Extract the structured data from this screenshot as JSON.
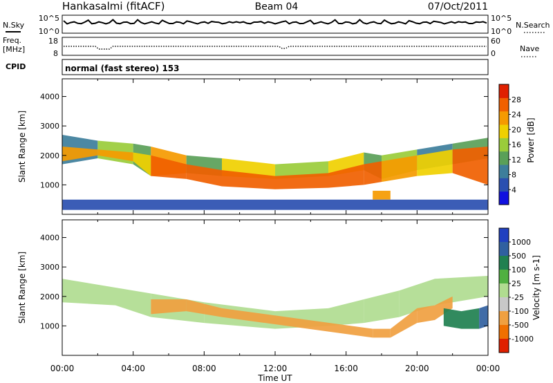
{
  "header": {
    "site": "Hankasalmi (fitACF)",
    "beam": "Beam 04",
    "date": "07/Oct/2011"
  },
  "top_strip": {
    "n_sky_label": "N.Sky",
    "n_search_label": "N.Search",
    "count_ticks": [
      "10^5",
      "10^0"
    ],
    "freq_label_1": "Freq.",
    "freq_label_2": "[MHz]",
    "freq_ticks": [
      "18",
      "8"
    ],
    "nave_label": "Nave",
    "nave_ticks": [
      "60",
      "0"
    ],
    "cpid_label": "CPID",
    "cpid_value": "normal (fast stereo) 153"
  },
  "chart_data": [
    {
      "type": "heatmap",
      "name": "power",
      "xlabel": "",
      "ylabel": "Slant Range [km]",
      "ylim": [
        0,
        4600
      ],
      "xlim_hours": [
        0,
        24
      ],
      "y_ticks": [
        "1000",
        "2000",
        "3000",
        "4000"
      ],
      "colorbar": {
        "label": "Power [dB]",
        "range": [
          0,
          32
        ],
        "ticks": [
          "4",
          "8",
          "12",
          "16",
          "20",
          "24",
          "28"
        ],
        "colors": [
          "#1010e0",
          "#2a4fb0",
          "#3d7e9b",
          "#5aa058",
          "#9acc3a",
          "#f0d000",
          "#f59a00",
          "#f06000",
          "#e02000"
        ]
      },
      "layers": [
        {
          "name": "upper",
          "t": [
            0,
            2,
            4,
            5,
            7,
            9,
            12,
            15,
            17,
            18,
            20,
            22,
            24
          ],
          "lower": [
            1700,
            1900,
            1700,
            1300,
            1400,
            1300,
            1200,
            1300,
            1500,
            1200,
            1500,
            1700,
            1900
          ],
          "upper": [
            2700,
            2500,
            2400,
            2300,
            2000,
            1900,
            1700,
            1800,
            2100,
            2000,
            2200,
            2400,
            2600
          ],
          "dB": [
            10,
            16,
            12,
            22,
            14,
            18,
            16,
            18,
            12,
            16,
            10,
            14,
            12
          ]
        },
        {
          "name": "core",
          "t": [
            0,
            2,
            4,
            5,
            7,
            9,
            12,
            15,
            17,
            18,
            20,
            22,
            24
          ],
          "lower": [
            1800,
            2000,
            1800,
            1300,
            1200,
            950,
            850,
            900,
            1000,
            1100,
            1300,
            1400,
            1000
          ],
          "upper": [
            2300,
            2200,
            2100,
            2000,
            1700,
            1500,
            1300,
            1400,
            1700,
            1800,
            2000,
            2200,
            2300
          ],
          "dB": [
            24,
            22,
            20,
            28,
            28,
            28,
            28,
            28,
            26,
            22,
            20,
            26,
            28
          ]
        },
        {
          "name": "secondary",
          "t": [
            17.5,
            18,
            18.5
          ],
          "lower": [
            500,
            500,
            500
          ],
          "upper": [
            800,
            800,
            800
          ],
          "dB": [
            24,
            24,
            24
          ]
        },
        {
          "name": "ground-scatter",
          "t": [
            0,
            24
          ],
          "lower": [
            150,
            150
          ],
          "upper": [
            500,
            500
          ],
          "dB": [
            6,
            6
          ]
        }
      ]
    },
    {
      "type": "heatmap",
      "name": "velocity",
      "xlabel": "Time UT",
      "ylabel": "Slant Range [km]",
      "ylim": [
        0,
        4600
      ],
      "xlim_hours": [
        0,
        24
      ],
      "x_ticks": [
        "00:00",
        "04:00",
        "08:00",
        "12:00",
        "16:00",
        "20:00",
        "00:00"
      ],
      "y_ticks": [
        "1000",
        "2000",
        "3000",
        "4000"
      ],
      "colorbar": {
        "label": "Velocity [m s-1]",
        "ticks": [
          "1000",
          "500",
          "100",
          "25",
          "-25",
          "-100",
          "-500",
          "-1000"
        ],
        "colors": [
          "#2040c0",
          "#3060a0",
          "#208050",
          "#50b040",
          "#b0dc90",
          "#c8c8c8",
          "#f0a040",
          "#f07000",
          "#e02000"
        ]
      },
      "layers": [
        {
          "name": "ground-band",
          "t": [
            0,
            3,
            5,
            8,
            12,
            15,
            17,
            19,
            21,
            24
          ],
          "lower": [
            1800,
            1700,
            1300,
            1100,
            900,
            1000,
            1100,
            1300,
            1700,
            2000
          ],
          "upper": [
            2600,
            2300,
            2100,
            1800,
            1500,
            1600,
            1900,
            2200,
            2600,
            2700
          ],
          "velocity": [
            0,
            0,
            0,
            0,
            0,
            0,
            0,
            0,
            0,
            0
          ]
        },
        {
          "name": "negative-patches",
          "t": [
            5,
            7,
            9,
            17.5,
            18.5,
            20,
            21,
            22
          ],
          "lower": [
            1400,
            1500,
            1300,
            600,
            600,
            1100,
            1200,
            1600
          ],
          "upper": [
            1900,
            1900,
            1600,
            900,
            900,
            1600,
            1700,
            2000
          ],
          "velocity": [
            -250,
            -200,
            -150,
            -400,
            -500,
            -200,
            -200,
            -150
          ]
        },
        {
          "name": "positive-patches",
          "t": [
            21.5,
            22.5,
            23.5,
            24
          ],
          "lower": [
            1000,
            900,
            900,
            1000
          ],
          "upper": [
            1600,
            1500,
            1600,
            1700
          ],
          "velocity": [
            300,
            400,
            600,
            500
          ]
        }
      ]
    }
  ]
}
